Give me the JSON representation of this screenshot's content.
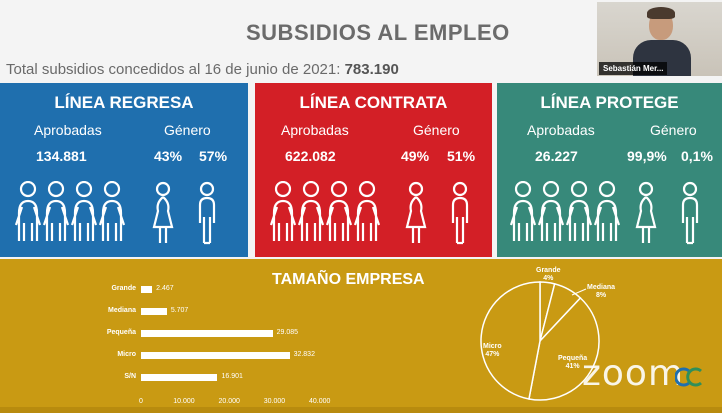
{
  "slide": {
    "title": "SUBSIDIOS AL EMPLEO",
    "total_label": "Total subsidios concedidos al 16 de junio de 2021:",
    "total_value": "783.190"
  },
  "video": {
    "name": "Sebastián Mer..."
  },
  "panels": [
    {
      "title": "LÍNEA REGRESA",
      "approved_label": "Aprobadas",
      "approved": "134.881",
      "gender_label": "Género",
      "female": "43%",
      "male": "57%",
      "color": "#1f6fae"
    },
    {
      "title": "LÍNEA CONTRATA",
      "approved_label": "Aprobadas",
      "approved": "622.082",
      "gender_label": "Género",
      "female": "49%",
      "male": "51%",
      "color": "#d31f26"
    },
    {
      "title": "LÍNEA PROTEGE",
      "approved_label": "Aprobadas",
      "approved": "26.227",
      "gender_label": "Género",
      "female": "99,9%",
      "male": "0,1%",
      "color": "#37897a"
    }
  ],
  "chart_data": [
    {
      "type": "bar",
      "title": "TAMAÑO EMPRESA",
      "orientation": "horizontal",
      "categories": [
        "Grande",
        "Mediana",
        "Pequeña",
        "Micro",
        "S/N"
      ],
      "values": [
        2467,
        5707,
        29085,
        32832,
        16901
      ],
      "value_labels": [
        "2.467",
        "5.707",
        "29.085",
        "32.832",
        "16.901"
      ],
      "xlim": [
        0,
        40000
      ],
      "x_ticks": [
        "0",
        "10.000",
        "20.000",
        "30.000",
        "40.000"
      ]
    },
    {
      "type": "pie",
      "categories": [
        "Grande",
        "Mediana",
        "Pequeña",
        "Micro"
      ],
      "values": [
        4,
        8,
        41,
        47
      ],
      "value_labels": [
        "4%",
        "8%",
        "41%",
        "47%"
      ]
    }
  ],
  "branding": {
    "zoom": "zoom"
  }
}
